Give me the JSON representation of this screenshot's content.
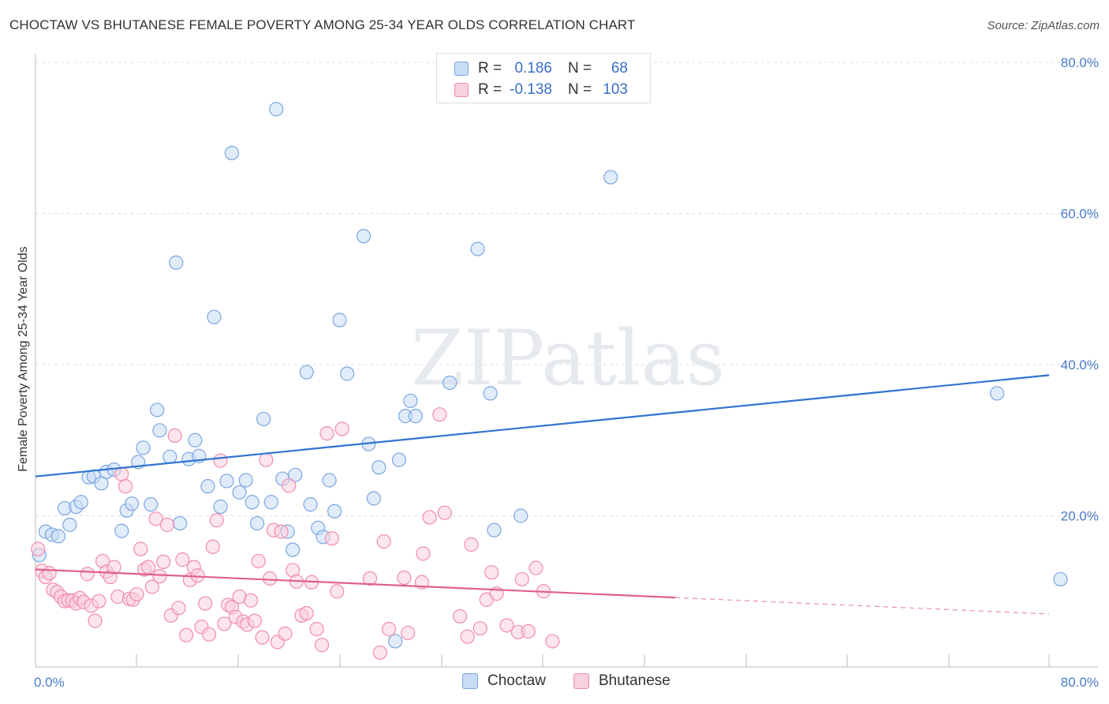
{
  "chart_data": {
    "type": "scatter",
    "title": "CHOCTAW VS BHUTANESE FEMALE POVERTY AMONG 25-34 YEAR OLDS CORRELATION CHART",
    "source": "Source: ZipAtlas.com",
    "ylabel": "Female Poverty Among 25-34 Year Olds",
    "xlabel": "",
    "xlim": [
      0,
      80
    ],
    "ylim": [
      0,
      80
    ],
    "y_ticks": [
      "80.0%",
      "60.0%",
      "40.0%",
      "20.0%"
    ],
    "x_tick_left": "0.0%",
    "x_tick_right": "80.0%",
    "watermark": "ZIPatlas",
    "legend": {
      "rows": [
        {
          "r_label": "R =",
          "r_value": "0.186",
          "n_label": "N =",
          "n_value": "68"
        },
        {
          "r_label": "R =",
          "r_value": "-0.138",
          "n_label": "N =",
          "n_value": "103"
        }
      ]
    },
    "series": [
      {
        "name": "Choctaw",
        "color": "#7aa6e0",
        "fill": "#c9dcf5",
        "line_color": "#2f74d0",
        "trend": {
          "x0": 0,
          "y0": 25.2,
          "x1": 80,
          "y1": 38.6,
          "solid_to": 80
        },
        "points": [
          [
            0.3,
            14.8
          ],
          [
            0.8,
            17.9
          ],
          [
            1.3,
            17.5
          ],
          [
            1.8,
            17.3
          ],
          [
            2.3,
            21.0
          ],
          [
            2.7,
            18.8
          ],
          [
            3.2,
            21.2
          ],
          [
            3.6,
            21.8
          ],
          [
            4.2,
            25.1
          ],
          [
            4.6,
            25.2
          ],
          [
            5.2,
            24.3
          ],
          [
            5.6,
            25.8
          ],
          [
            6.2,
            26.1
          ],
          [
            6.8,
            18.0
          ],
          [
            7.2,
            20.7
          ],
          [
            7.6,
            21.6
          ],
          [
            8.1,
            27.1
          ],
          [
            8.5,
            29.0
          ],
          [
            9.1,
            21.5
          ],
          [
            9.6,
            34.0
          ],
          [
            9.8,
            31.3
          ],
          [
            10.6,
            27.8
          ],
          [
            11.1,
            53.5
          ],
          [
            11.4,
            19.0
          ],
          [
            12.1,
            27.5
          ],
          [
            12.6,
            30.0
          ],
          [
            12.9,
            27.9
          ],
          [
            13.6,
            23.9
          ],
          [
            14.1,
            46.3
          ],
          [
            14.6,
            21.2
          ],
          [
            15.1,
            24.6
          ],
          [
            15.5,
            68.0
          ],
          [
            16.1,
            23.1
          ],
          [
            16.6,
            24.7
          ],
          [
            17.1,
            21.8
          ],
          [
            17.5,
            19.0
          ],
          [
            18.0,
            32.8
          ],
          [
            18.6,
            21.8
          ],
          [
            19.0,
            73.8
          ],
          [
            19.5,
            24.9
          ],
          [
            19.9,
            17.9
          ],
          [
            20.3,
            15.5
          ],
          [
            20.5,
            25.4
          ],
          [
            21.4,
            39.0
          ],
          [
            21.7,
            21.5
          ],
          [
            22.3,
            18.4
          ],
          [
            22.7,
            17.2
          ],
          [
            23.2,
            24.7
          ],
          [
            23.6,
            20.6
          ],
          [
            24.0,
            45.9
          ],
          [
            24.6,
            38.8
          ],
          [
            25.9,
            57.0
          ],
          [
            26.3,
            29.5
          ],
          [
            26.7,
            22.3
          ],
          [
            27.1,
            26.4
          ],
          [
            28.4,
            3.4
          ],
          [
            28.7,
            27.4
          ],
          [
            29.2,
            33.2
          ],
          [
            29.6,
            35.2
          ],
          [
            30.0,
            33.2
          ],
          [
            32.7,
            37.6
          ],
          [
            34.9,
            55.3
          ],
          [
            35.9,
            36.2
          ],
          [
            36.2,
            18.1
          ],
          [
            38.3,
            20.0
          ],
          [
            45.4,
            64.8
          ],
          [
            75.9,
            36.2
          ],
          [
            80.9,
            11.6
          ]
        ]
      },
      {
        "name": "Bhutanese",
        "color": "#f08cb0",
        "fill": "#f9d0de",
        "line_color": "#e0608e",
        "trend": {
          "x0": 0,
          "y0": 12.9,
          "x1": 80,
          "y1": 7.0,
          "solid_to": 50.5
        },
        "points": [
          [
            0.2,
            15.6
          ],
          [
            0.5,
            12.7
          ],
          [
            0.8,
            11.9
          ],
          [
            1.1,
            12.4
          ],
          [
            1.4,
            10.2
          ],
          [
            1.7,
            9.9
          ],
          [
            2.0,
            9.3
          ],
          [
            2.3,
            8.7
          ],
          [
            2.6,
            8.8
          ],
          [
            2.9,
            8.8
          ],
          [
            3.2,
            8.4
          ],
          [
            3.5,
            9.1
          ],
          [
            3.8,
            8.6
          ],
          [
            4.1,
            12.3
          ],
          [
            4.4,
            8.1
          ],
          [
            4.7,
            6.1
          ],
          [
            5.0,
            8.7
          ],
          [
            5.3,
            14.0
          ],
          [
            5.6,
            12.6
          ],
          [
            5.9,
            11.9
          ],
          [
            6.2,
            13.2
          ],
          [
            6.5,
            9.3
          ],
          [
            6.8,
            25.5
          ],
          [
            7.1,
            23.9
          ],
          [
            7.4,
            9.0
          ],
          [
            7.7,
            8.9
          ],
          [
            8.0,
            9.6
          ],
          [
            8.3,
            15.6
          ],
          [
            8.6,
            12.9
          ],
          [
            8.9,
            13.2
          ],
          [
            9.2,
            10.6
          ],
          [
            9.5,
            19.6
          ],
          [
            9.8,
            12.0
          ],
          [
            10.1,
            13.9
          ],
          [
            10.4,
            18.8
          ],
          [
            10.7,
            6.8
          ],
          [
            11.0,
            30.6
          ],
          [
            11.3,
            7.8
          ],
          [
            11.6,
            14.2
          ],
          [
            11.9,
            4.2
          ],
          [
            12.2,
            11.5
          ],
          [
            12.5,
            13.2
          ],
          [
            12.8,
            12.1
          ],
          [
            13.1,
            5.3
          ],
          [
            13.4,
            8.4
          ],
          [
            13.7,
            4.3
          ],
          [
            14.0,
            15.9
          ],
          [
            14.3,
            19.4
          ],
          [
            14.6,
            27.3
          ],
          [
            14.9,
            5.7
          ],
          [
            15.2,
            8.2
          ],
          [
            15.5,
            7.9
          ],
          [
            15.8,
            6.6
          ],
          [
            16.1,
            9.3
          ],
          [
            16.4,
            6.0
          ],
          [
            16.7,
            5.6
          ],
          [
            17.0,
            8.8
          ],
          [
            17.3,
            6.1
          ],
          [
            17.6,
            14.0
          ],
          [
            17.9,
            3.9
          ],
          [
            18.2,
            27.4
          ],
          [
            18.5,
            11.7
          ],
          [
            18.8,
            18.1
          ],
          [
            19.1,
            3.3
          ],
          [
            19.4,
            17.9
          ],
          [
            19.7,
            4.4
          ],
          [
            20.0,
            24.0
          ],
          [
            20.3,
            12.8
          ],
          [
            20.6,
            11.3
          ],
          [
            21.0,
            6.8
          ],
          [
            21.4,
            7.1
          ],
          [
            21.8,
            11.2
          ],
          [
            22.2,
            5.0
          ],
          [
            22.6,
            2.9
          ],
          [
            23.0,
            30.9
          ],
          [
            23.4,
            17.0
          ],
          [
            23.8,
            10.0
          ],
          [
            24.2,
            31.5
          ],
          [
            26.4,
            11.7
          ],
          [
            27.2,
            1.9
          ],
          [
            27.5,
            16.6
          ],
          [
            27.9,
            5.0
          ],
          [
            29.1,
            11.8
          ],
          [
            29.4,
            4.5
          ],
          [
            30.5,
            11.2
          ],
          [
            30.6,
            15.0
          ],
          [
            31.1,
            19.8
          ],
          [
            31.9,
            33.4
          ],
          [
            32.3,
            20.4
          ],
          [
            33.5,
            6.7
          ],
          [
            34.1,
            4.0
          ],
          [
            34.4,
            16.2
          ],
          [
            35.1,
            5.1
          ],
          [
            35.6,
            8.9
          ],
          [
            36.0,
            12.5
          ],
          [
            36.4,
            9.7
          ],
          [
            37.2,
            5.5
          ],
          [
            38.1,
            4.6
          ],
          [
            38.4,
            11.6
          ],
          [
            38.9,
            4.7
          ],
          [
            39.5,
            13.1
          ],
          [
            40.1,
            10.0
          ],
          [
            40.8,
            3.4
          ]
        ]
      }
    ],
    "extra_points_choctaw_note": ""
  }
}
